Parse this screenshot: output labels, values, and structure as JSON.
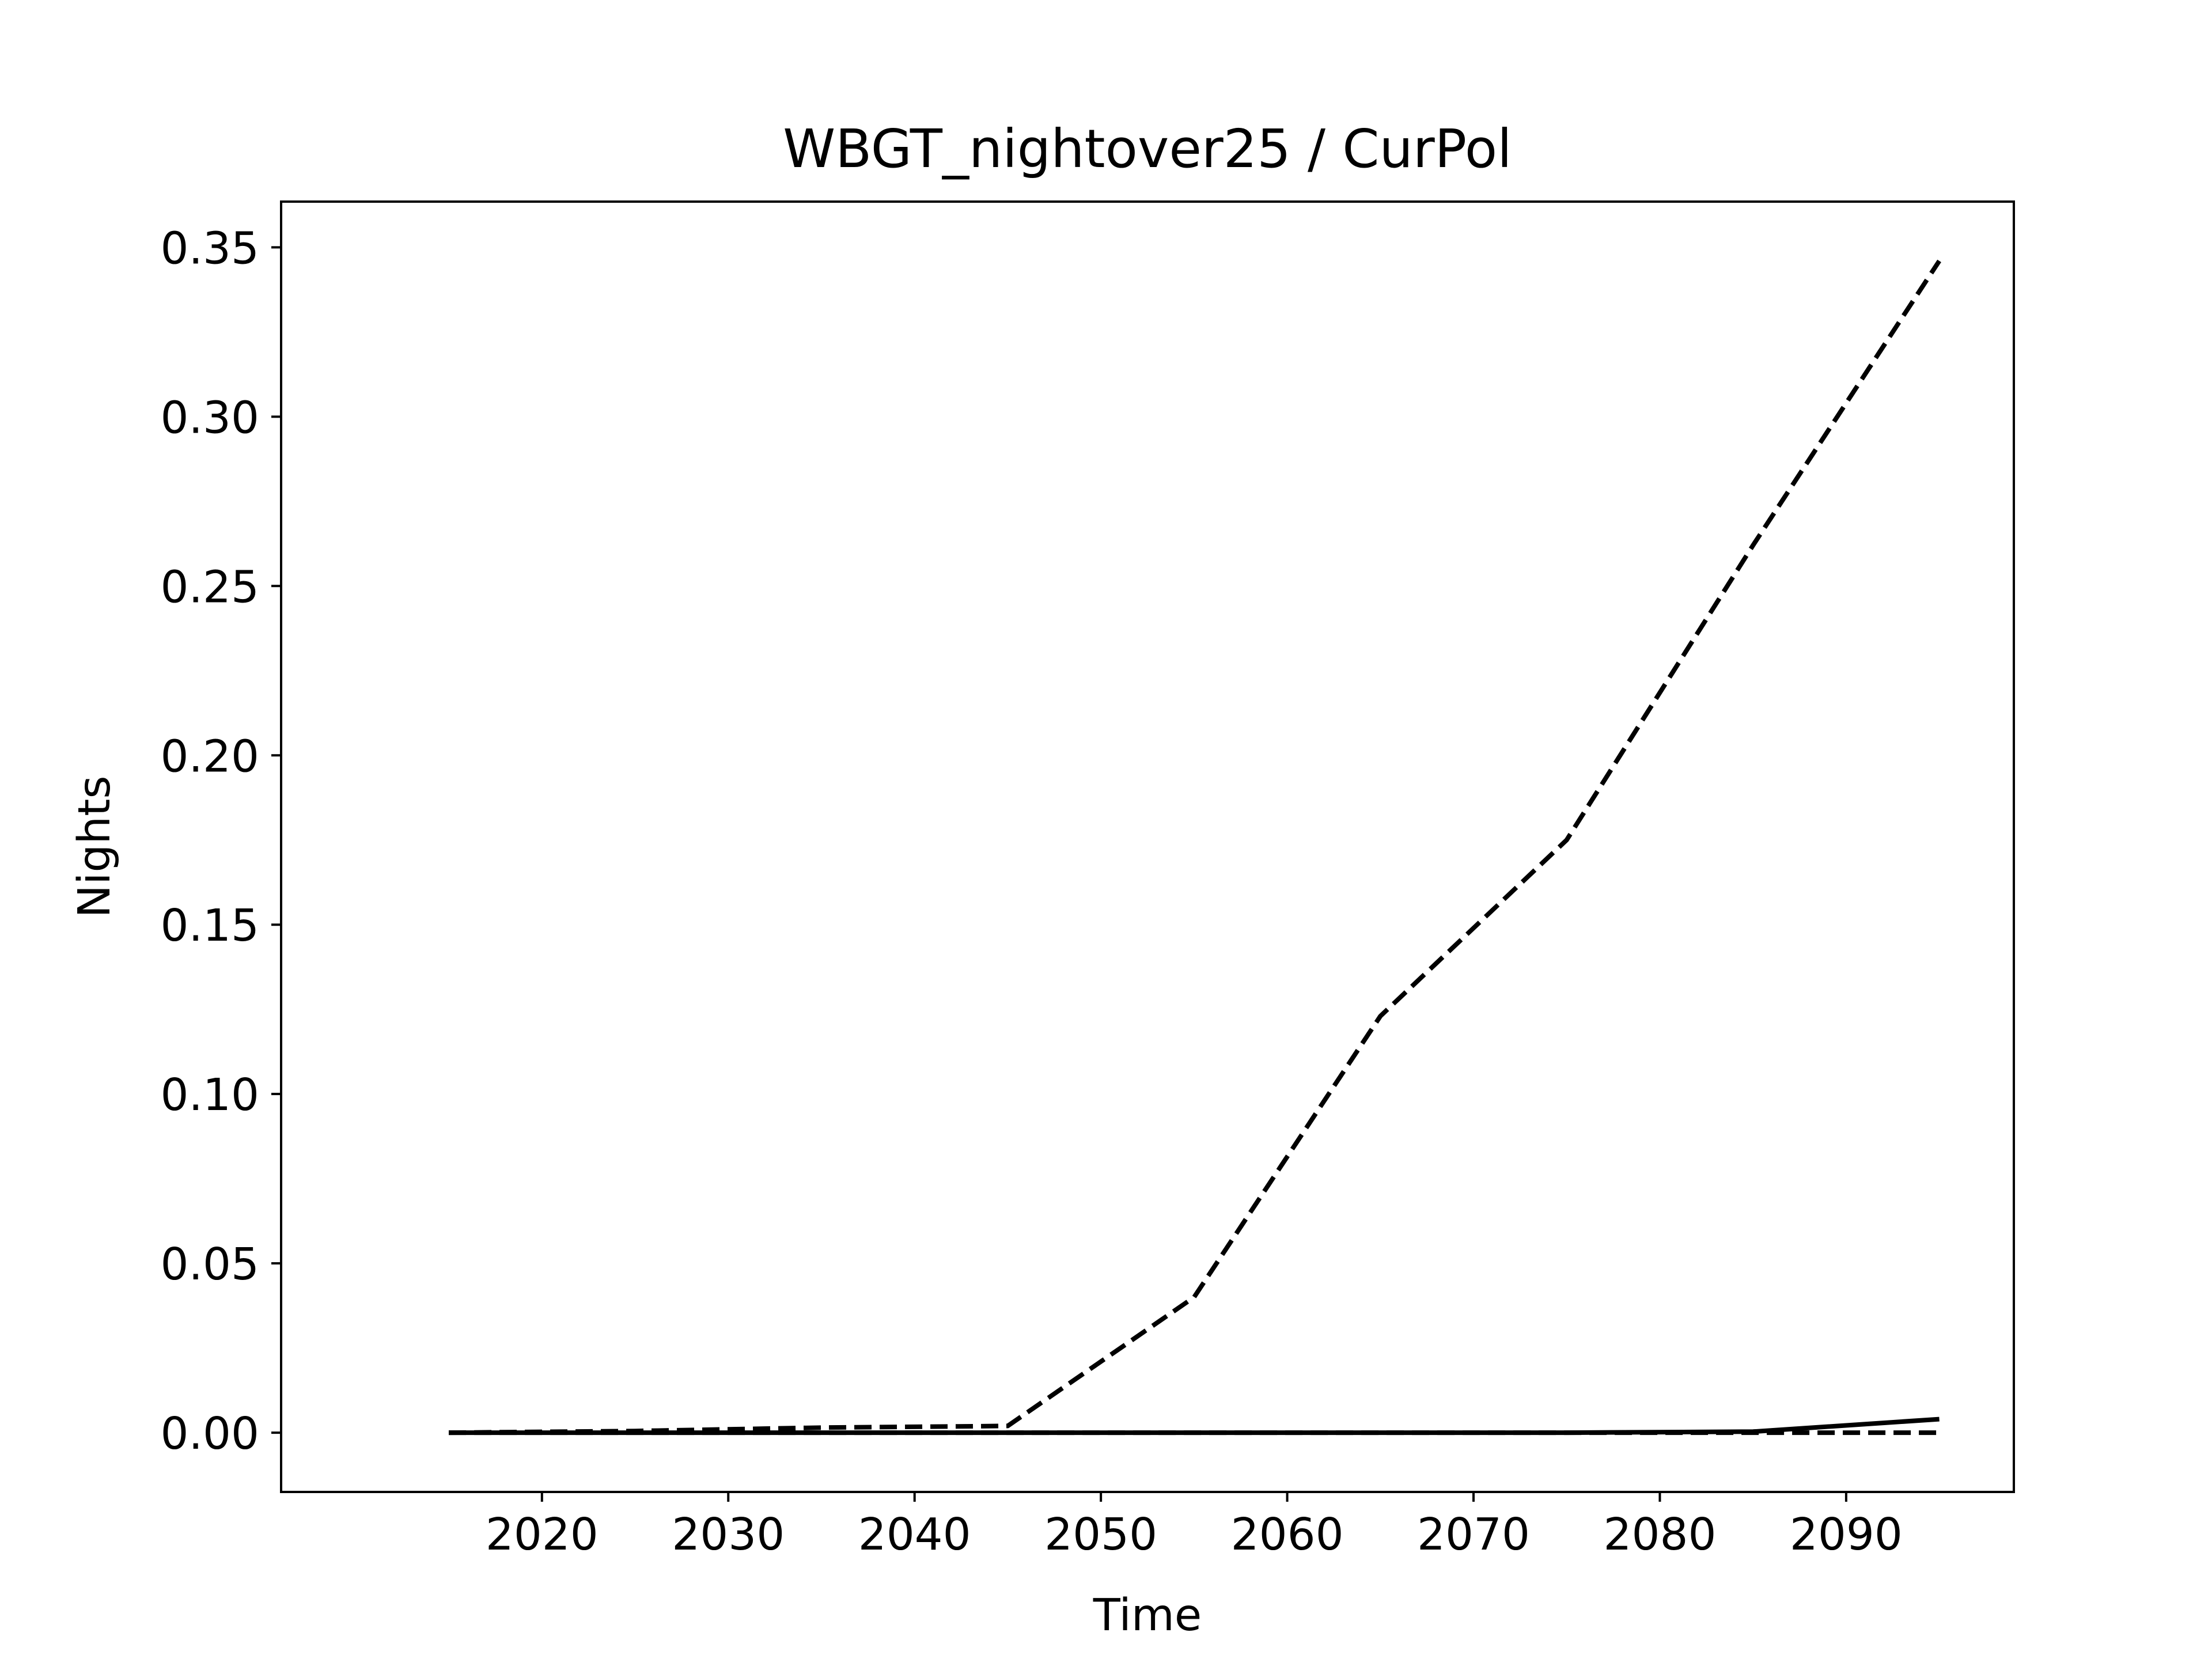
{
  "chart_data": {
    "type": "line",
    "title": "WBGT_nightover25 / CurPol",
    "xlabel": "Time",
    "ylabel": "Nights",
    "xlim": [
      2006,
      2099
    ],
    "ylim": [
      -0.0175,
      0.3635
    ],
    "x_ticks": [
      2020,
      2030,
      2040,
      2050,
      2060,
      2070,
      2080,
      2090
    ],
    "y_ticks": [
      0.0,
      0.05,
      0.1,
      0.15,
      0.2,
      0.25,
      0.3,
      0.35
    ],
    "grid": false,
    "legend": "none",
    "x": [
      2015,
      2025,
      2035,
      2045,
      2055,
      2065,
      2075,
      2085,
      2095
    ],
    "series": [
      {
        "style": "dashed",
        "color": "#000000",
        "values": [
          0.0,
          0.0005,
          0.0015,
          0.002,
          0.04,
          0.123,
          0.175,
          0.262,
          0.346
        ]
      },
      {
        "style": "dashed",
        "color": "#000000",
        "values": [
          0.0,
          0.0,
          0.0,
          0.0,
          0.0,
          0.0,
          0.0,
          0.0,
          0.0
        ]
      },
      {
        "style": "solid",
        "color": "#000000",
        "values": [
          0.0,
          0.0,
          0.0,
          0.0,
          0.0,
          0.0,
          0.0,
          0.0003,
          0.004
        ]
      }
    ]
  }
}
